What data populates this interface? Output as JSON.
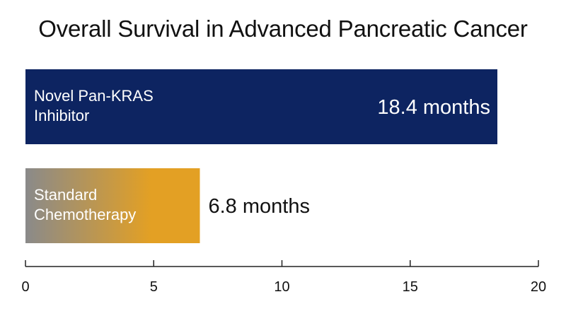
{
  "chart_data": {
    "type": "bar",
    "orientation": "horizontal",
    "title": "Overall Survival in Advanced Pancreatic Cancer",
    "xlabel": "",
    "ylabel": "",
    "xlim": [
      0,
      20
    ],
    "ticks": [
      "0",
      "5",
      "10",
      "15",
      "20"
    ],
    "tick_values": [
      0,
      5,
      10,
      15,
      20
    ],
    "grid": false,
    "categories": [
      [
        "Novel Pan-KRAS",
        "Inhibitor"
      ],
      [
        "Standard",
        "Chemotherapy"
      ]
    ],
    "values": [
      18.4,
      6.8
    ],
    "value_labels": [
      "18.4 months",
      "6.8 months"
    ],
    "colors": {
      "bar_1": "#0d2461",
      "bar_2_start": "#8a8a8a",
      "bar_2_end": "#e3a024",
      "axis": "#222222",
      "text_on_dark": "#ffffff",
      "text_dark": "#111111"
    }
  }
}
